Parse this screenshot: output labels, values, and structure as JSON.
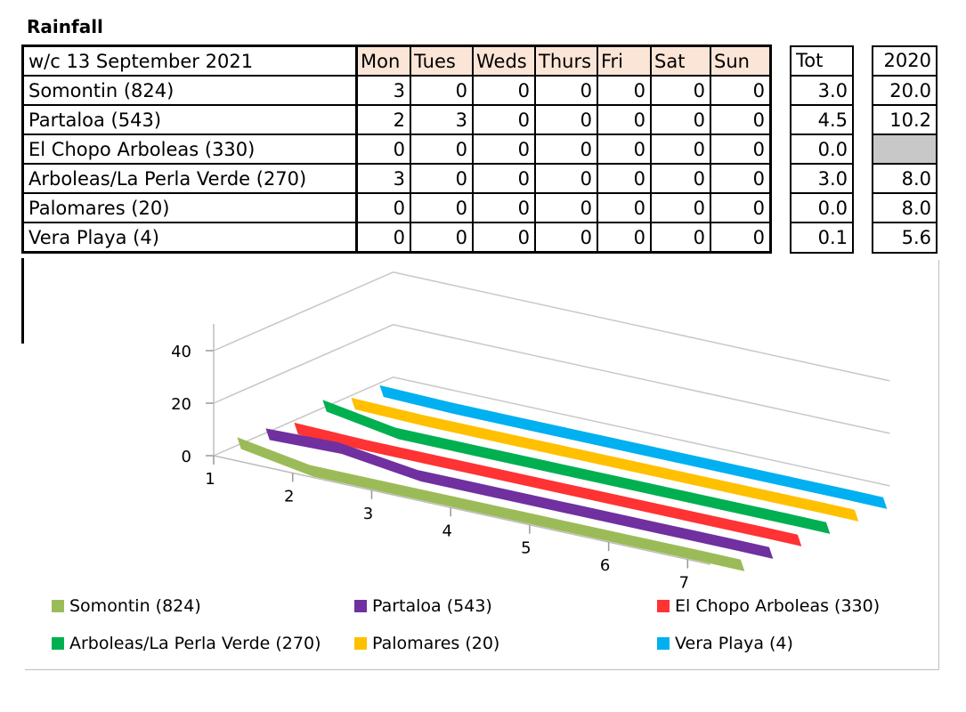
{
  "title": "Rainfall",
  "table": {
    "week_label": "w/c  13 September 2021",
    "days": [
      "Mon",
      "Tues",
      "Weds",
      "Thurs",
      "Fri",
      "Sat",
      "Sun"
    ],
    "tot_label": "Tot",
    "prev_label": "2020",
    "rows": [
      {
        "name": "Somontin (824)",
        "values": [
          "3",
          "0",
          "0",
          "0",
          "0",
          "0",
          "0"
        ],
        "tot": "3.0",
        "prev": "20.0"
      },
      {
        "name": "Partaloa (543)",
        "values": [
          "2",
          "3",
          "0",
          "0",
          "0",
          "0",
          "0"
        ],
        "tot": "4.5",
        "prev": "10.2"
      },
      {
        "name": "El Chopo Arboleas (330)",
        "values": [
          "0",
          "0",
          "0",
          "0",
          "0",
          "0",
          "0"
        ],
        "tot": "0.0",
        "prev": ""
      },
      {
        "name": "Arboleas/La Perla Verde (270)",
        "values": [
          "3",
          "0",
          "0",
          "0",
          "0",
          "0",
          "0"
        ],
        "tot": "3.0",
        "prev": "8.0"
      },
      {
        "name": "Palomares (20)",
        "values": [
          "0",
          "0",
          "0",
          "0",
          "0",
          "0",
          "0"
        ],
        "tot": "0.0",
        "prev": "8.0"
      },
      {
        "name": "Vera Playa (4)",
        "values": [
          "0",
          "0",
          "0",
          "0",
          "0",
          "0",
          "0"
        ],
        "tot": "0.1",
        "prev": "5.6"
      }
    ]
  },
  "chart_data": {
    "type": "line",
    "view": "3d",
    "categories": [
      "1",
      "2",
      "3",
      "4",
      "5",
      "6",
      "7"
    ],
    "y_ticks": [
      "0",
      "20",
      "40"
    ],
    "ylim": [
      0,
      40
    ],
    "legend_position": "bottom",
    "series": [
      {
        "name": "Somontin (824)",
        "values": [
          3,
          0,
          0,
          0,
          0,
          0,
          0
        ],
        "color": "#9bbb59"
      },
      {
        "name": "Partaloa (543)",
        "values": [
          2,
          3,
          0,
          0,
          0,
          0,
          0
        ],
        "color": "#7030a0"
      },
      {
        "name": "El Chopo Arboleas (330)",
        "values": [
          0,
          0,
          0,
          0,
          0,
          0,
          0
        ],
        "color": "#ff3333"
      },
      {
        "name": "Arboleas/La Perla Verde (270)",
        "values": [
          3,
          0,
          0,
          0,
          0,
          0,
          0
        ],
        "color": "#00b050"
      },
      {
        "name": "Palomares (20)",
        "values": [
          0,
          0,
          0,
          0,
          0,
          0,
          0
        ],
        "color": "#ffc000"
      },
      {
        "name": "Vera Playa (4)",
        "values": [
          0,
          0,
          0,
          0,
          0,
          0,
          0
        ],
        "color": "#00b0f0"
      }
    ]
  }
}
